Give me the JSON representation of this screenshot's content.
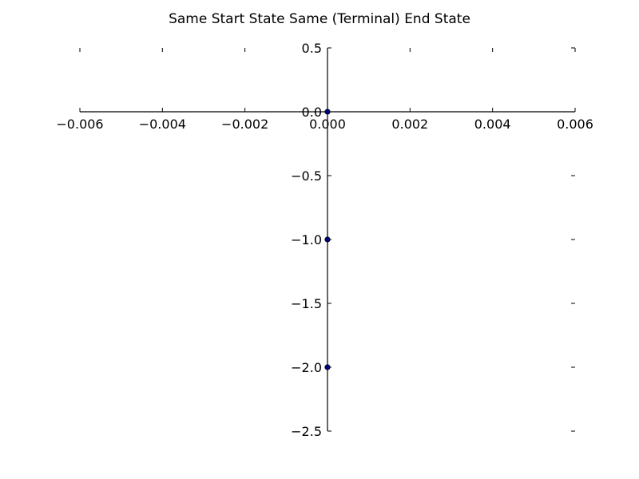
{
  "chart_data": {
    "type": "scatter",
    "title": "Same Start State Same (Terminal) End State",
    "xlabel": "",
    "ylabel": "",
    "xlim": [
      -0.006,
      0.006
    ],
    "ylim": [
      -2.5,
      0.5
    ],
    "x_ticks": [
      -0.006,
      -0.004,
      -0.002,
      0.0,
      0.002,
      0.004,
      0.006
    ],
    "x_tick_labels": [
      "−0.006",
      "−0.004",
      "−0.002",
      "0.000",
      "0.002",
      "0.004",
      "0.006"
    ],
    "y_ticks": [
      0.5,
      0.0,
      -0.5,
      -1.0,
      -1.5,
      -2.0,
      -2.5
    ],
    "y_tick_labels": [
      "0.5",
      "0.0",
      "−0.5",
      "−1.0",
      "−1.5",
      "−2.0",
      "−2.5"
    ],
    "grid": false,
    "spines": "centered",
    "series": [
      {
        "x": [
          0.0,
          0.0,
          0.0
        ],
        "y": [
          0.0,
          -1.0,
          -2.0
        ],
        "color": "#000080"
      }
    ]
  }
}
